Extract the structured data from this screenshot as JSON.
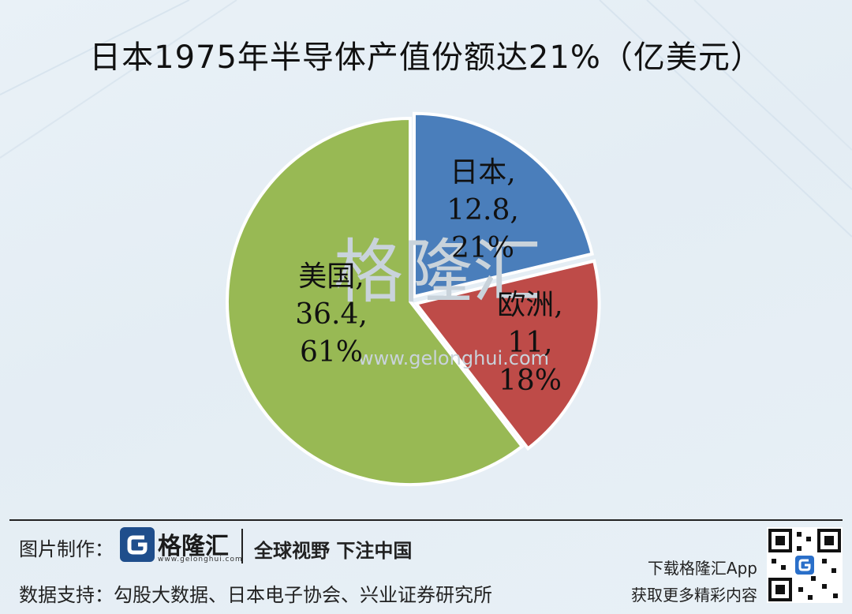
{
  "title": "日本1975年半导体产值份额达21%（亿美元）",
  "chart_data": {
    "type": "pie",
    "title": "日本1975年半导体产值份额达21%（亿美元）",
    "slices": [
      {
        "name": "日本",
        "value": 12.8,
        "percent": "21%",
        "value_text": "12.8",
        "color": "#4a7ebb"
      },
      {
        "name": "欧洲",
        "value": 11,
        "percent": "18%",
        "value_text": "11",
        "color": "#be4b48"
      },
      {
        "name": "美国",
        "value": 36.4,
        "percent": "61%",
        "value_text": "36.4",
        "color": "#98b954"
      }
    ]
  },
  "watermark": {
    "text": "格隆汇",
    "url": "www.gelonghui.com"
  },
  "footer": {
    "credit_label": "图片制作：",
    "logo_text": "格隆汇",
    "logo_url": "www.gelonghui.com",
    "slogan": "全球视野 下注中国",
    "source": "数据支持：勾股大数据、日本电子协会、兴业证券研究所",
    "app_line1": "下载格隆汇App",
    "app_line2": "获取更多精彩内容"
  }
}
